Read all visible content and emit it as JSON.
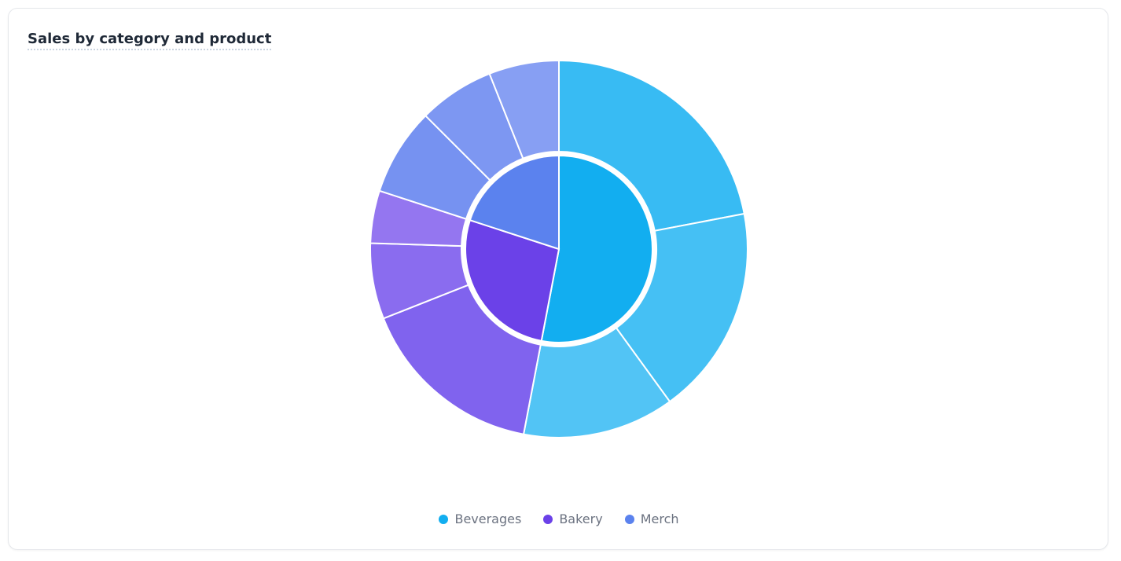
{
  "chart_data": {
    "type": "sunburst",
    "title": "Sales by category and product",
    "categories": [
      "Beverages",
      "Bakery",
      "Merch"
    ],
    "values": [
      53,
      27,
      20
    ],
    "colors": [
      "#12aef0",
      "#6b41e8",
      "#5b82ee"
    ],
    "children": [
      [
        22,
        18,
        13
      ],
      [
        16,
        6.5,
        4.5
      ],
      [
        7.5,
        6.5,
        6
      ]
    ],
    "child_colors": [
      [
        "#38bbf3",
        "#45c0f4",
        "#52c4f5"
      ],
      [
        "#8063ee",
        "#8a6cef",
        "#9476f0"
      ],
      [
        "#7692f1",
        "#7d97f2",
        "#879ff3"
      ]
    ],
    "legend": "bottom"
  }
}
